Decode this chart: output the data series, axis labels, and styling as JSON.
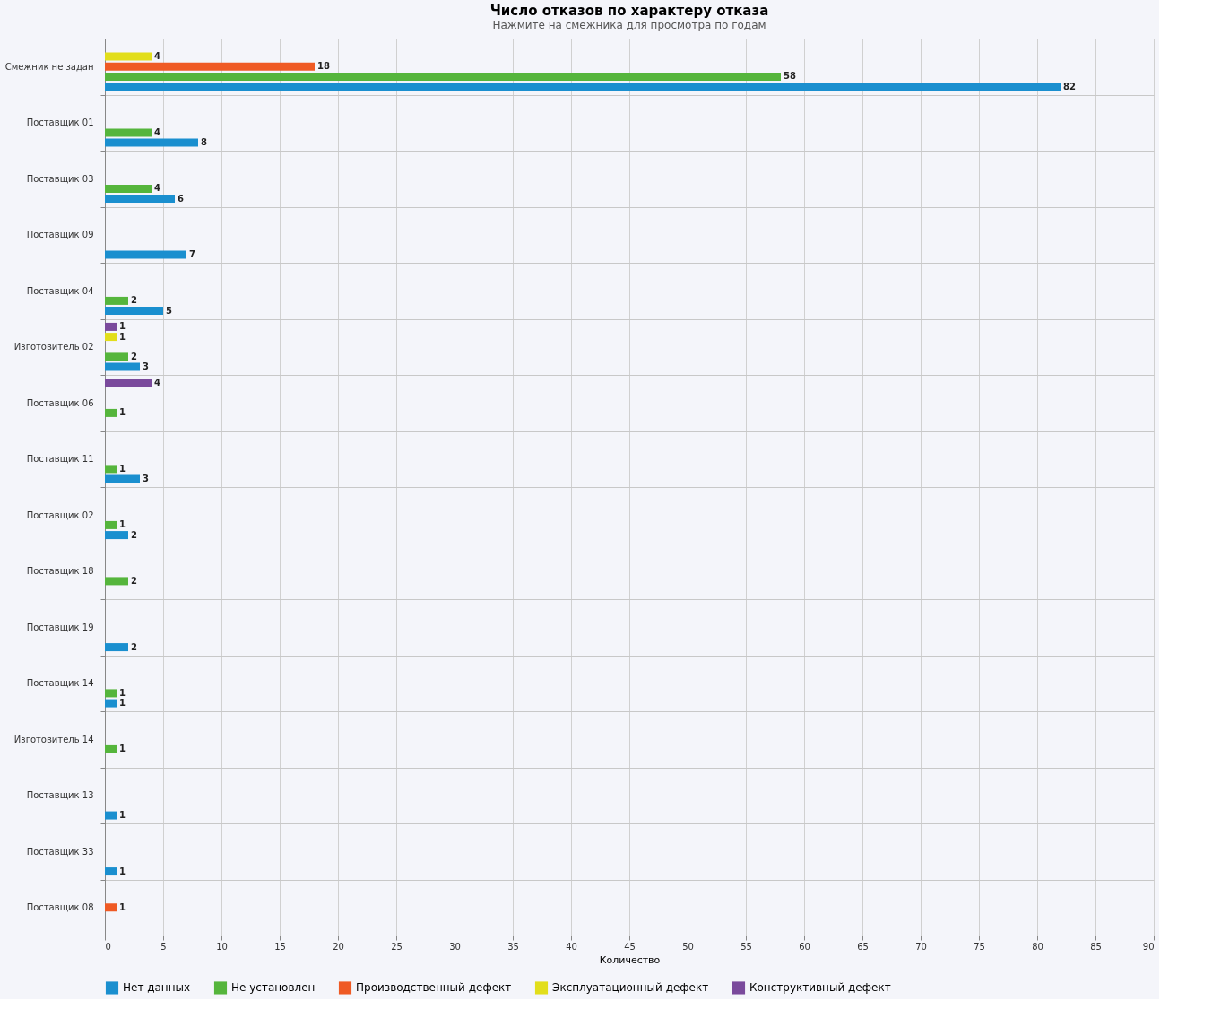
{
  "chart_data": {
    "type": "bar",
    "orientation": "horizontal",
    "title": "Число отказов по характеру отказа",
    "subtitle": "Нажмите на смежника для просмотра по годам",
    "xlabel": "Количество",
    "categories": [
      "Смежник не задан",
      "Поставщик 01",
      "Поставщик 03",
      "Поставщик 09",
      "Поставщик 04",
      "Изготовитель 02",
      "Поставщик 06",
      "Поставщик 11",
      "Поставщик 02",
      "Поставщик 18",
      "Поставщик 19",
      "Поставщик 14",
      "Изготовитель 14",
      "Поставщик 13",
      "Поставщик 33",
      "Поставщик 08"
    ],
    "series": [
      {
        "name": "Нет данных",
        "color": "#1a8fcf",
        "values": [
          82,
          8,
          6,
          7,
          5,
          3,
          null,
          3,
          2,
          null,
          2,
          1,
          null,
          1,
          1,
          null
        ]
      },
      {
        "name": "Не установлен",
        "color": "#55b53c",
        "values": [
          58,
          4,
          4,
          null,
          2,
          2,
          1,
          1,
          1,
          2,
          null,
          1,
          1,
          null,
          null,
          null
        ]
      },
      {
        "name": "Производственный дефект",
        "color": "#ef5a24",
        "values": [
          18,
          null,
          null,
          null,
          null,
          null,
          null,
          null,
          null,
          null,
          null,
          null,
          null,
          null,
          null,
          1
        ]
      },
      {
        "name": "Эксплуатационный дефект",
        "color": "#e2de1b",
        "values": [
          4,
          null,
          null,
          null,
          null,
          1,
          null,
          null,
          null,
          null,
          null,
          null,
          null,
          null,
          null,
          null
        ]
      },
      {
        "name": "Конструктивный дефект",
        "color": "#7a4a9c",
        "values": [
          null,
          null,
          null,
          null,
          null,
          1,
          4,
          null,
          null,
          null,
          null,
          null,
          null,
          null,
          null,
          null
        ]
      }
    ],
    "xlim": [
      0,
      90
    ],
    "xticks": [
      0,
      5,
      10,
      15,
      20,
      25,
      30,
      35,
      40,
      45,
      50,
      55,
      60,
      65,
      70,
      75,
      80,
      85,
      90
    ],
    "grid": true,
    "legend": "bottom",
    "data_labels": true
  }
}
